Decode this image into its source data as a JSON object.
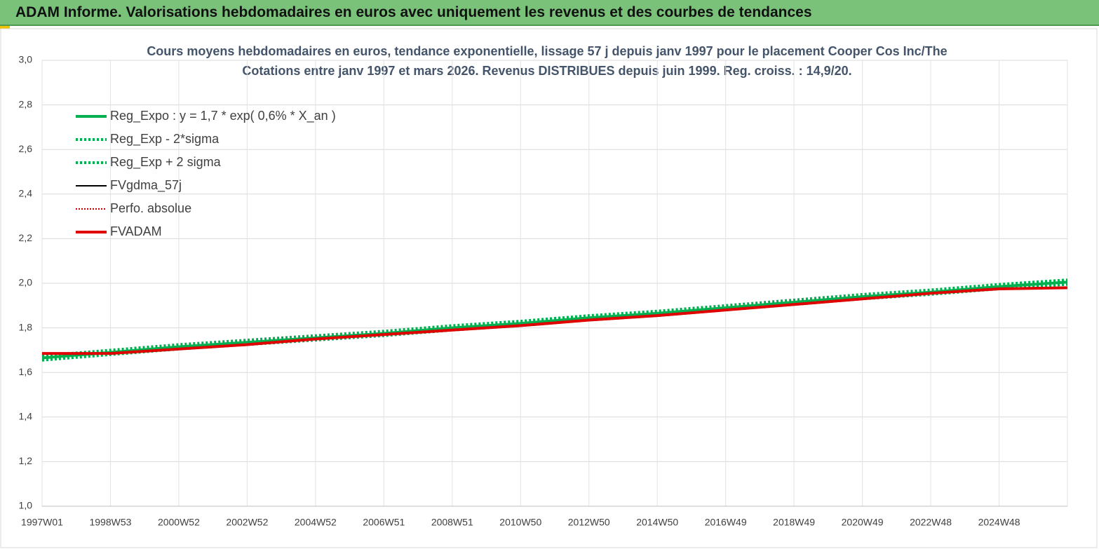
{
  "header": {
    "title": "ADAM Informe. Valorisations hebdomadaires en euros avec uniquement les revenus et des courbes de tendances"
  },
  "chart_data": {
    "type": "line",
    "title": "Cours moyens hebdomadaires en euros, tendance exponentielle, lissage 57 j depuis janv 1997 pour le placement Cooper Cos Inc/The",
    "subtitle": "Cotations entre janv 1997 et mars 2026. Revenus DISTRIBUES depuis juin 1999. Reg. croiss. : 14,9/20.",
    "categories": [
      "1997W01",
      "1998W53",
      "2000W52",
      "2002W52",
      "2004W52",
      "2006W51",
      "2008W51",
      "2010W50",
      "2012W50",
      "2014W50",
      "2016W49",
      "2018W49",
      "2020W49",
      "2022W48",
      "2024W48",
      null
    ],
    "ylim": [
      1,
      3
    ],
    "yticks": [
      {
        "value": 1,
        "label": "1,0"
      },
      {
        "value": 1.2,
        "label": "1,2"
      },
      {
        "value": 1.4,
        "label": "1,4"
      },
      {
        "value": 1.6,
        "label": "1,6"
      },
      {
        "value": 1.8,
        "label": "1,8"
      },
      {
        "value": 2,
        "label": "2,0"
      },
      {
        "value": 2.2,
        "label": "2,2"
      },
      {
        "value": 2.4,
        "label": "2,4"
      },
      {
        "value": 2.6,
        "label": "2,6"
      },
      {
        "value": 2.8,
        "label": "2,8"
      },
      {
        "value": 3,
        "label": "3,0"
      }
    ],
    "grid": true,
    "legend": "top-left",
    "series": [
      {
        "name": "Reg_Expo : y = 1,7 * exp( 0,6% *  X_an )",
        "color": "#00b050",
        "line_style": "solid",
        "weight": "bold",
        "values": [
          1.665,
          1.69,
          1.715,
          1.735,
          1.755,
          1.775,
          1.8,
          1.82,
          1.845,
          1.865,
          1.89,
          1.915,
          1.94,
          1.96,
          1.985,
          2.005
        ]
      },
      {
        "name": "Reg_Exp - 2*sigma",
        "color": "#00b050",
        "line_style": "dotted",
        "weight": "bold",
        "values": [
          1.655,
          1.68,
          1.705,
          1.725,
          1.745,
          1.765,
          1.79,
          1.81,
          1.835,
          1.855,
          1.88,
          1.905,
          1.93,
          1.95,
          1.975,
          1.995
        ]
      },
      {
        "name": "Reg_Exp + 2 sigma",
        "color": "#00b050",
        "line_style": "dotted",
        "weight": "bold",
        "values": [
          1.675,
          1.7,
          1.725,
          1.745,
          1.765,
          1.785,
          1.81,
          1.83,
          1.855,
          1.875,
          1.9,
          1.925,
          1.95,
          1.97,
          1.995,
          2.015
        ]
      },
      {
        "name": "FVgdma_57j",
        "color": "#000000",
        "line_style": "solid",
        "weight": "thin",
        "values": [
          1.685,
          1.685,
          1.705,
          1.725,
          1.75,
          1.77,
          1.79,
          1.81,
          1.835,
          1.855,
          1.88,
          1.905,
          1.93,
          1.955,
          1.975,
          1.98
        ]
      },
      {
        "name": "Perfo. absolue",
        "color": "#c00000",
        "line_style": "dotted",
        "weight": "thin",
        "values": [
          1.685,
          1.685,
          1.705,
          1.725,
          1.75,
          1.77,
          1.79,
          1.81,
          1.835,
          1.855,
          1.88,
          1.905,
          1.93,
          1.955,
          1.975,
          1.98
        ]
      },
      {
        "name": "FVADAM",
        "color": "#e00000",
        "line_style": "solid",
        "weight": "bold",
        "values": [
          1.685,
          1.685,
          1.705,
          1.725,
          1.75,
          1.77,
          1.79,
          1.81,
          1.835,
          1.855,
          1.88,
          1.905,
          1.93,
          1.955,
          1.975,
          1.98
        ]
      }
    ]
  }
}
